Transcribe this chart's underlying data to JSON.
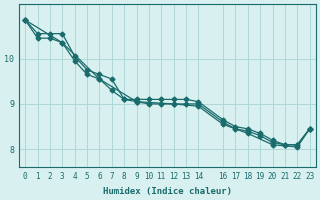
{
  "xlabel": "Humidex (Indice chaleur)",
  "ylabel": "",
  "bg_color": "#d8f0f0",
  "grid_color": "#b0d8d8",
  "line_color": "#1a6b6b",
  "axis_color": "#1a6b6b",
  "text_color": "#1a6b6b",
  "xlim": [
    -0.5,
    23.5
  ],
  "ylim": [
    7.6,
    11.2
  ],
  "yticks": [
    8,
    9,
    10
  ],
  "xticks": [
    0,
    1,
    2,
    3,
    4,
    5,
    6,
    7,
    8,
    9,
    10,
    11,
    12,
    13,
    14,
    16,
    17,
    18,
    19,
    20,
    21,
    22,
    23
  ],
  "xtick_labels": [
    "0",
    "1",
    "2",
    "3",
    "4",
    "5",
    "6",
    "7",
    "8",
    "9",
    "10",
    "11",
    "12",
    "13",
    "14",
    "16",
    "17",
    "18",
    "19",
    "20",
    "21",
    "22",
    "23"
  ],
  "line1_x": [
    0,
    1,
    2,
    3,
    4,
    5,
    6,
    7,
    8,
    9,
    10,
    11,
    12,
    13,
    14,
    16,
    17,
    18,
    19,
    20,
    21,
    22,
    23
  ],
  "line1_y": [
    10.85,
    10.55,
    10.55,
    10.55,
    10.05,
    9.75,
    9.65,
    9.55,
    9.1,
    9.1,
    9.1,
    9.1,
    9.1,
    9.1,
    9.05,
    8.65,
    8.5,
    8.45,
    8.35,
    8.2,
    8.1,
    8.1,
    8.45
  ],
  "line2_x": [
    0,
    1,
    2,
    3,
    4,
    5,
    6,
    7,
    8,
    9,
    10,
    11,
    12,
    13,
    14,
    16,
    17,
    18,
    19,
    20,
    21,
    22,
    23
  ],
  "line2_y": [
    10.85,
    10.45,
    10.45,
    10.35,
    9.95,
    9.65,
    9.55,
    9.3,
    9.1,
    9.05,
    9.0,
    9.0,
    9.0,
    9.0,
    9.0,
    8.6,
    8.45,
    8.4,
    8.3,
    8.15,
    8.1,
    8.1,
    8.45
  ],
  "line3_x": [
    0,
    3,
    6,
    9,
    12,
    14,
    16,
    18,
    20,
    22,
    23
  ],
  "line3_y": [
    10.85,
    10.35,
    9.55,
    9.05,
    9.0,
    8.95,
    8.55,
    8.35,
    8.1,
    8.05,
    8.45
  ]
}
